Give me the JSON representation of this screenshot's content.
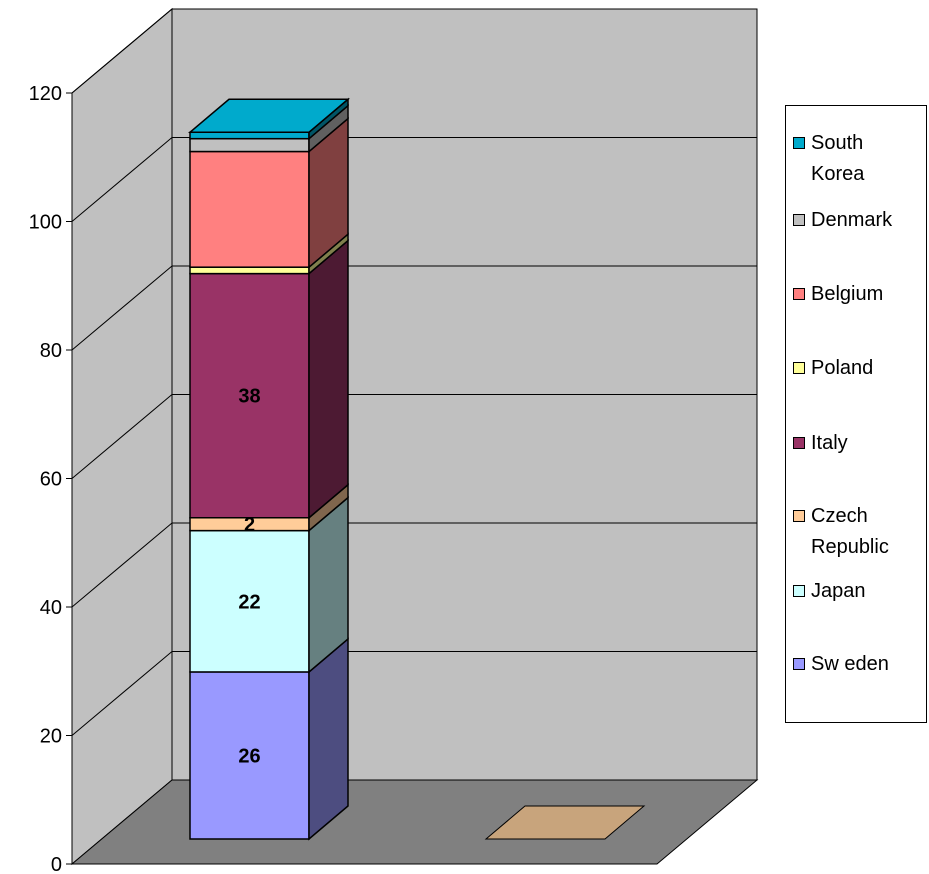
{
  "chart_data": {
    "type": "bar",
    "stacked": true,
    "three_d": true,
    "title": "",
    "xlabel": "",
    "ylabel": "",
    "ylim": [
      0,
      120
    ],
    "yticks": [
      0,
      20,
      40,
      60,
      80,
      100,
      120
    ],
    "grid": true,
    "legend_position": "right",
    "categories": [
      "",
      ""
    ],
    "series": [
      {
        "name": "Sw eden",
        "values": [
          26,
          0
        ],
        "color": "#9999ff",
        "show_label": true
      },
      {
        "name": "Japan",
        "values": [
          22,
          0
        ],
        "color": "#ccffff",
        "show_label": true
      },
      {
        "name": "Czech Republic",
        "values": [
          2,
          0
        ],
        "color": "#ffcc99",
        "show_label": true
      },
      {
        "name": "Italy",
        "values": [
          38,
          0
        ],
        "color": "#993366",
        "show_label": true
      },
      {
        "name": "Poland",
        "values": [
          1,
          0
        ],
        "color": "#ffff99",
        "show_label": false
      },
      {
        "name": "Belgium",
        "values": [
          18,
          0
        ],
        "color": "#ff8080",
        "show_label": false
      },
      {
        "name": "Denmark",
        "values": [
          2,
          0
        ],
        "color": "#c0c0c0",
        "show_label": false
      },
      {
        "name": "South Korea",
        "values": [
          1,
          0
        ],
        "color": "#00aacc",
        "show_label": false
      }
    ],
    "colors": {
      "back_wall": "#c0c0c0",
      "side_wall": "#c0c0c0",
      "floor": "#808080",
      "empty_bar_top": "#c8a47c"
    }
  },
  "legend": {
    "items": [
      {
        "label": "South Korea",
        "color": "#00aacc"
      },
      {
        "label": "Denmark",
        "color": "#c0c0c0"
      },
      {
        "label": "Belgium",
        "color": "#ff8080"
      },
      {
        "label": "Poland",
        "color": "#ffff99"
      },
      {
        "label": "Italy",
        "color": "#993366"
      },
      {
        "label": "Czech Republic",
        "color": "#ffcc99"
      },
      {
        "label": "Japan",
        "color": "#ccffff"
      },
      {
        "label": "Sw eden",
        "color": "#9999ff"
      }
    ]
  }
}
